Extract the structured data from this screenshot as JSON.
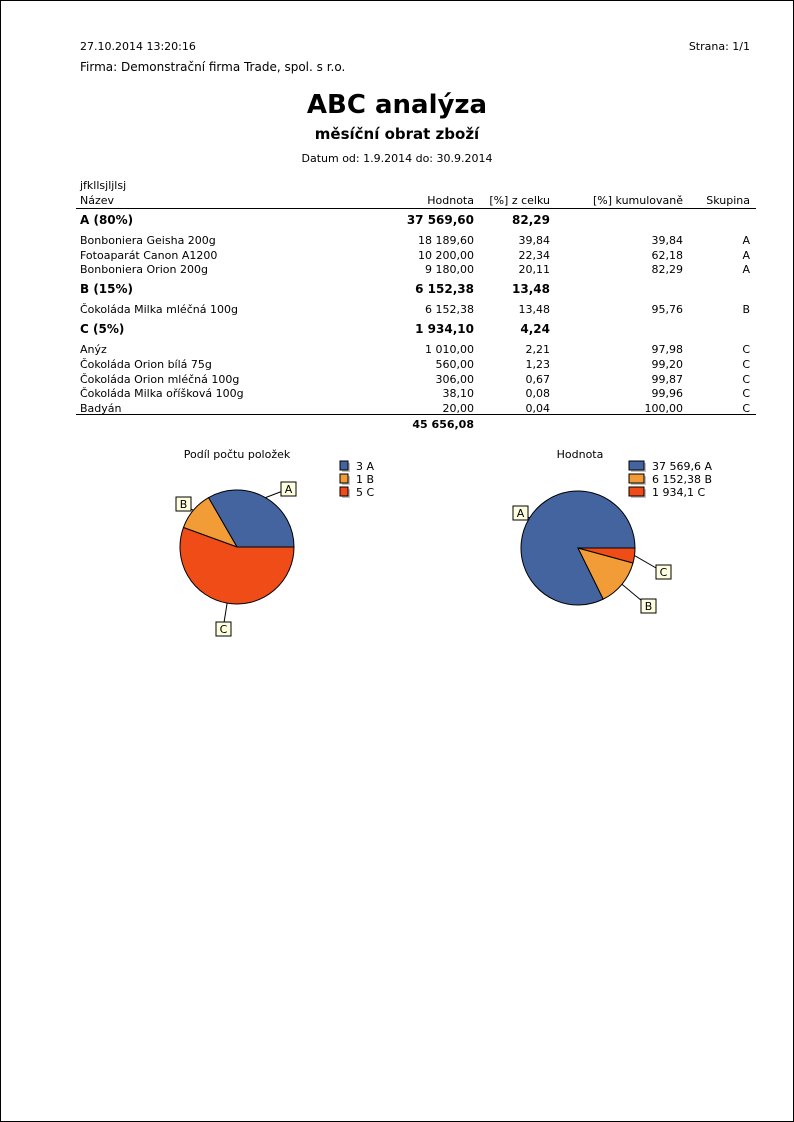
{
  "header": {
    "datetime": "27.10.2014 13:20:16",
    "page": "Strana: 1/1",
    "company": "Firma: Demonstrační firma Trade, spol. s r.o.",
    "title": "ABC analýza",
    "subtitle": "měsíční obrat zboží",
    "date_range": "Datum od: 1.9.2014  do: 30.9.2014"
  },
  "table": {
    "caption": "jfkllsjljlsj",
    "columns": [
      "Název",
      "Hodnota",
      "[%] z celku",
      "[%] kumulovaně",
      "Skupina"
    ],
    "groups": [
      {
        "label": "A (80%)",
        "value": "37 569,60",
        "pct": "82,29",
        "items": [
          [
            "Bonboniera Geisha 200g",
            "18 189,60",
            "39,84",
            "39,84",
            "A"
          ],
          [
            "Fotoaparát Canon A1200",
            "10 200,00",
            "22,34",
            "62,18",
            "A"
          ],
          [
            "Bonboniera Orion 200g",
            "9 180,00",
            "20,11",
            "82,29",
            "A"
          ]
        ]
      },
      {
        "label": "B (15%)",
        "value": "6 152,38",
        "pct": "13,48",
        "items": [
          [
            "Čokoláda Milka mléčná 100g",
            "6 152,38",
            "13,48",
            "95,76",
            "B"
          ]
        ]
      },
      {
        "label": "C (5%)",
        "value": "1 934,10",
        "pct": "4,24",
        "items": [
          [
            "Anýz",
            "1 010,00",
            "2,21",
            "97,98",
            "C"
          ],
          [
            "Čokoláda Orion bílá 75g",
            "560,00",
            "1,23",
            "99,20",
            "C"
          ],
          [
            "Čokoláda Orion mléčná 100g",
            "306,00",
            "0,67",
            "99,87",
            "C"
          ],
          [
            "Čokoláda Milka oříšková 100g",
            "38,10",
            "0,08",
            "99,96",
            "C"
          ],
          [
            "Badyán",
            "20,00",
            "0,04",
            "100,00",
            "C"
          ]
        ]
      }
    ],
    "total": "45 656,08"
  },
  "chart_data": [
    {
      "type": "pie",
      "title": "Podíl počtu položek",
      "categories": [
        "A",
        "B",
        "C"
      ],
      "values": [
        3,
        1,
        5
      ],
      "legend": [
        "3 A",
        "1 B",
        "5 C"
      ],
      "legend_position": "right",
      "colors": [
        "#4464a0",
        "#f29c38",
        "#f04c18"
      ]
    },
    {
      "type": "pie",
      "title": "Hodnota",
      "categories": [
        "A",
        "B",
        "C"
      ],
      "values": [
        37569.6,
        6152.38,
        1934.1
      ],
      "legend": [
        "37 569,6 A",
        "6 152,38 B",
        "1 934,1 C"
      ],
      "legend_position": "right",
      "colors": [
        "#4464a0",
        "#f29c38",
        "#f04c18"
      ]
    }
  ]
}
